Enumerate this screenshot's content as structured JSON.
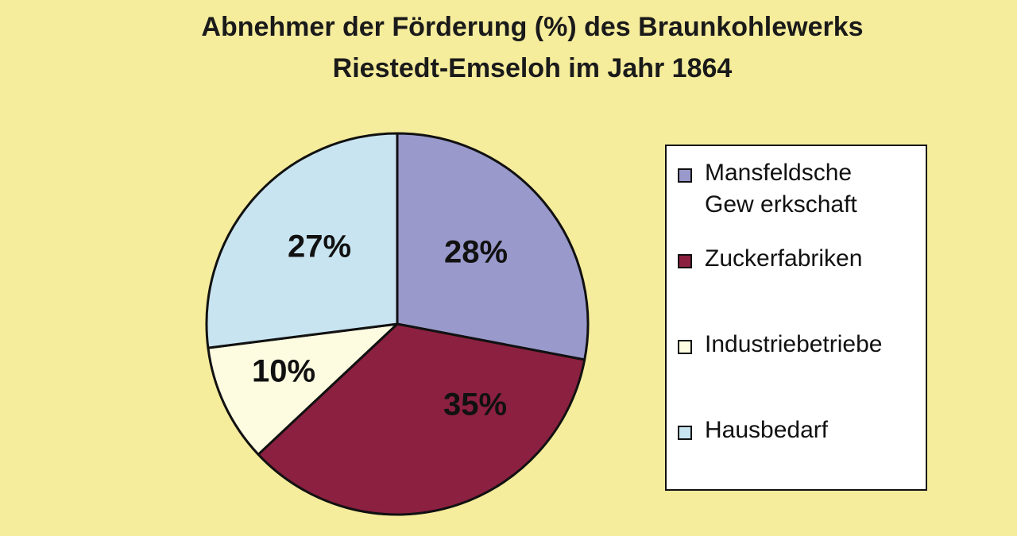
{
  "chart_data": {
    "type": "pie",
    "title_line1": "Abnehmer der Förderung (%) des Braunkohlewerks",
    "title_line2": "Riestedt-Emseloh im Jahr 1864",
    "slices": [
      {
        "name": "Mansfeldsche Gew erkschaft",
        "value": 28,
        "label": "28%",
        "color": "#9999cc"
      },
      {
        "name": "Zuckerfabriken",
        "value": 35,
        "label": "35%",
        "color": "#8b2040"
      },
      {
        "name": "Industriebetriebe",
        "value": 10,
        "label": "10%",
        "color": "#fdfbe0"
      },
      {
        "name": "Hausbedarf",
        "value": 27,
        "label": "27%",
        "color": "#c8e4f0"
      }
    ],
    "legend_placement": "right"
  },
  "legend": {
    "items": [
      {
        "line1": "Mansfeldsche",
        "line2": "Gew erkschaft",
        "color": "#9999cc"
      },
      {
        "line1": "Zuckerfabriken",
        "color": "#8b2040"
      },
      {
        "line1": "Industriebetriebe",
        "color": "#fdfbe0"
      },
      {
        "line1": "Hausbedarf",
        "color": "#c8e4f0"
      }
    ]
  },
  "colors": {
    "background": "#f5ec9c"
  }
}
